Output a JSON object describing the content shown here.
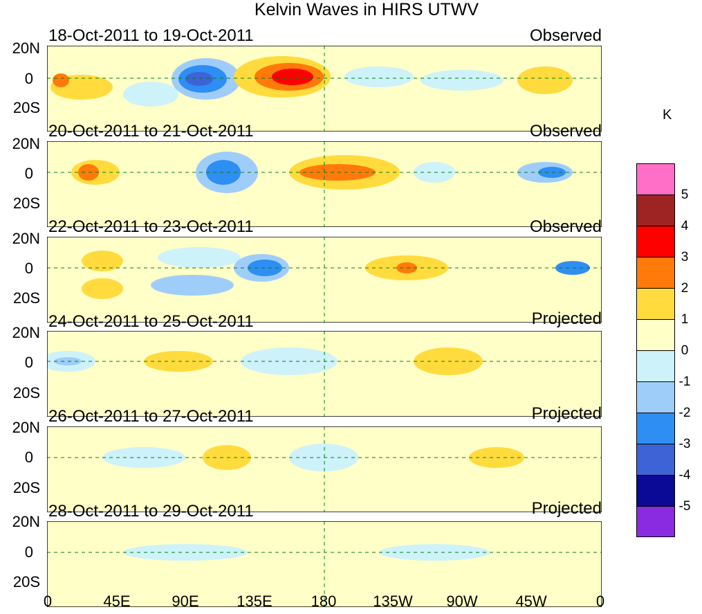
{
  "title": "Kelvin Waves in HIRS UTWV",
  "lat_labels": [
    "20N",
    "0",
    "20S"
  ],
  "lon_labels": [
    "0",
    "45E",
    "90E",
    "135E",
    "180",
    "135W",
    "90W",
    "45W",
    "0"
  ],
  "panels": [
    {
      "date": "18-Oct-2011 to 19-Oct-2011",
      "kind": "Observed"
    },
    {
      "date": "20-Oct-2011 to 21-Oct-2011",
      "kind": "Observed"
    },
    {
      "date": "22-Oct-2011 to 23-Oct-2011",
      "kind": "Observed"
    },
    {
      "date": "24-Oct-2011 to 25-Oct-2011",
      "kind": "Projected"
    },
    {
      "date": "26-Oct-2011 to 27-Oct-2011",
      "kind": "Projected"
    },
    {
      "date": "28-Oct-2011 to 29-Oct-2011",
      "kind": "Projected"
    }
  ],
  "colorbar": {
    "units": "K",
    "labels": [
      "5",
      "4",
      "3",
      "2",
      "1",
      "0",
      "-1",
      "-2",
      "-3",
      "-4",
      "-5"
    ],
    "colors": [
      "#ff6ec7",
      "#9e2424",
      "#ff0000",
      "#ff7a0a",
      "#ffdb3d",
      "#ffffc8",
      "#cdf2fa",
      "#9fcdfa",
      "#2e8ef2",
      "#3d63d6",
      "#0a0a96",
      "#8a2be2"
    ]
  }
}
